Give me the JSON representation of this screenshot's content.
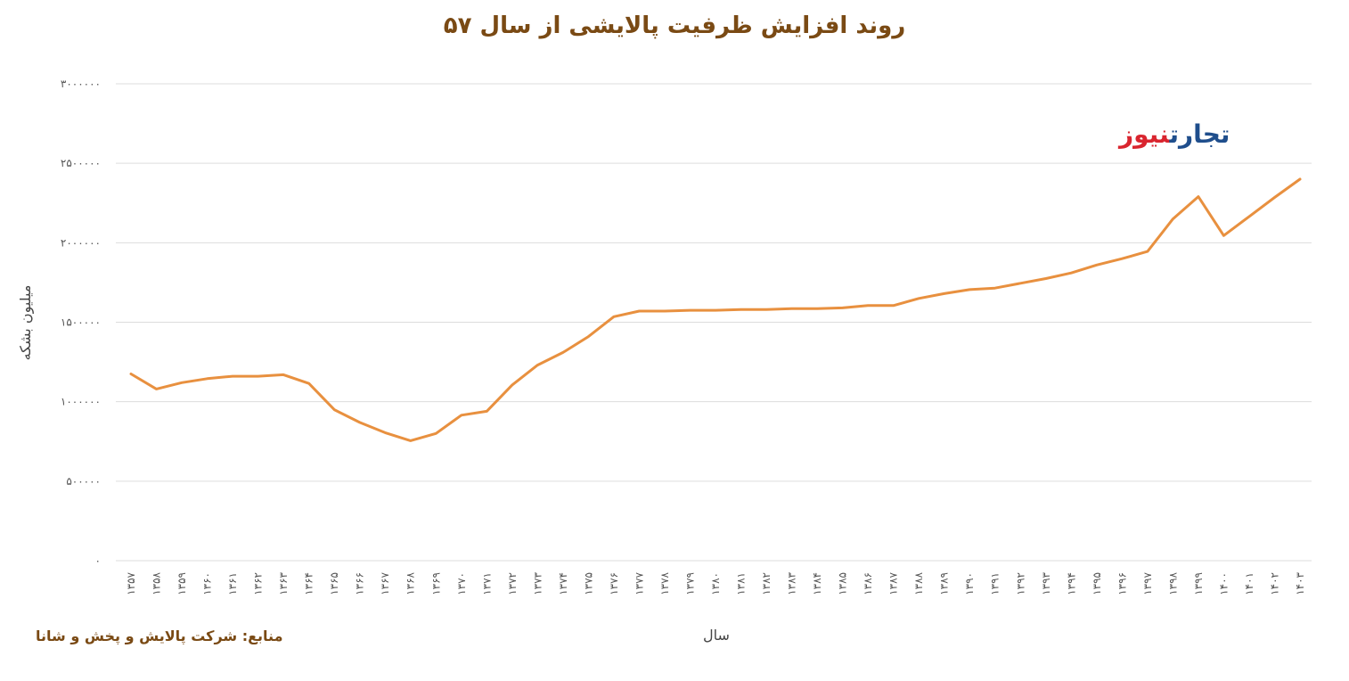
{
  "title": "روند افزایش ظرفیت پالایشی از سال ۵۷",
  "source": "منابع: شرکت پالایش و پخش و شانا",
  "logo": {
    "part1": "تجارت",
    "part2": "نیوز",
    "color1": "#1f4e8c",
    "color2": "#d9252f"
  },
  "chart_data": {
    "type": "line",
    "title": "روند افزایش ظرفیت پالایشی از سال ۵۷",
    "xlabel": "سال",
    "ylabel": "میلیون بشکه",
    "ylim": [
      0,
      3000000
    ],
    "yticks": [
      {
        "value": 0,
        "label": "۰"
      },
      {
        "value": 500000,
        "label": "۵۰۰۰۰۰"
      },
      {
        "value": 1000000,
        "label": "۱۰۰۰۰۰۰"
      },
      {
        "value": 1500000,
        "label": "۱۵۰۰۰۰۰"
      },
      {
        "value": 2000000,
        "label": "۲۰۰۰۰۰۰"
      },
      {
        "value": 2500000,
        "label": "۲۵۰۰۰۰۰"
      },
      {
        "value": 3000000,
        "label": "۳۰۰۰۰۰۰"
      }
    ],
    "grid": true,
    "line_color": "#e8903f",
    "categories": [
      "۱۳۵۷",
      "۱۳۵۸",
      "۱۳۵۹",
      "۱۳۶۰",
      "۱۳۶۱",
      "۱۳۶۲",
      "۱۳۶۳",
      "۱۳۶۴",
      "۱۳۶۵",
      "۱۳۶۶",
      "۱۳۶۷",
      "۱۳۶۸",
      "۱۳۶۹",
      "۱۳۷۰",
      "۱۳۷۱",
      "۱۳۷۲",
      "۱۳۷۳",
      "۱۳۷۴",
      "۱۳۷۵",
      "۱۳۷۶",
      "۱۳۷۷",
      "۱۳۷۸",
      "۱۳۷۹",
      "۱۳۸۰",
      "۱۳۸۱",
      "۱۳۸۲",
      "۱۳۸۳",
      "۱۳۸۴",
      "۱۳۸۵",
      "۱۳۸۶",
      "۱۳۸۷",
      "۱۳۸۸",
      "۱۳۸۹",
      "۱۳۹۰",
      "۱۳۹۱",
      "۱۳۹۲",
      "۱۳۹۳",
      "۱۳۹۴",
      "۱۳۹۵",
      "۱۳۹۶",
      "۱۳۹۷",
      "۱۳۹۸",
      "۱۳۹۹",
      "۱۴۰۰",
      "۱۴۰۱",
      "۱۴۰۲",
      "۱۴۰۳"
    ],
    "series": [
      {
        "values": [
          1175000,
          1080000,
          1120000,
          1145000,
          1160000,
          1160000,
          1170000,
          1115000,
          950000,
          870000,
          805000,
          755000,
          800000,
          915000,
          940000,
          1105000,
          1230000,
          1310000,
          1410000,
          1535000,
          1570000,
          1570000,
          1575000,
          1575000,
          1580000,
          1580000,
          1585000,
          1585000,
          1590000,
          1605000,
          1605000,
          1650000,
          1680000,
          1705000,
          1715000,
          1745000,
          1775000,
          1810000,
          1860000,
          1900000,
          1945000,
          2150000,
          2290000,
          2045000,
          2165000,
          2285000,
          2400000
        ]
      }
    ]
  }
}
